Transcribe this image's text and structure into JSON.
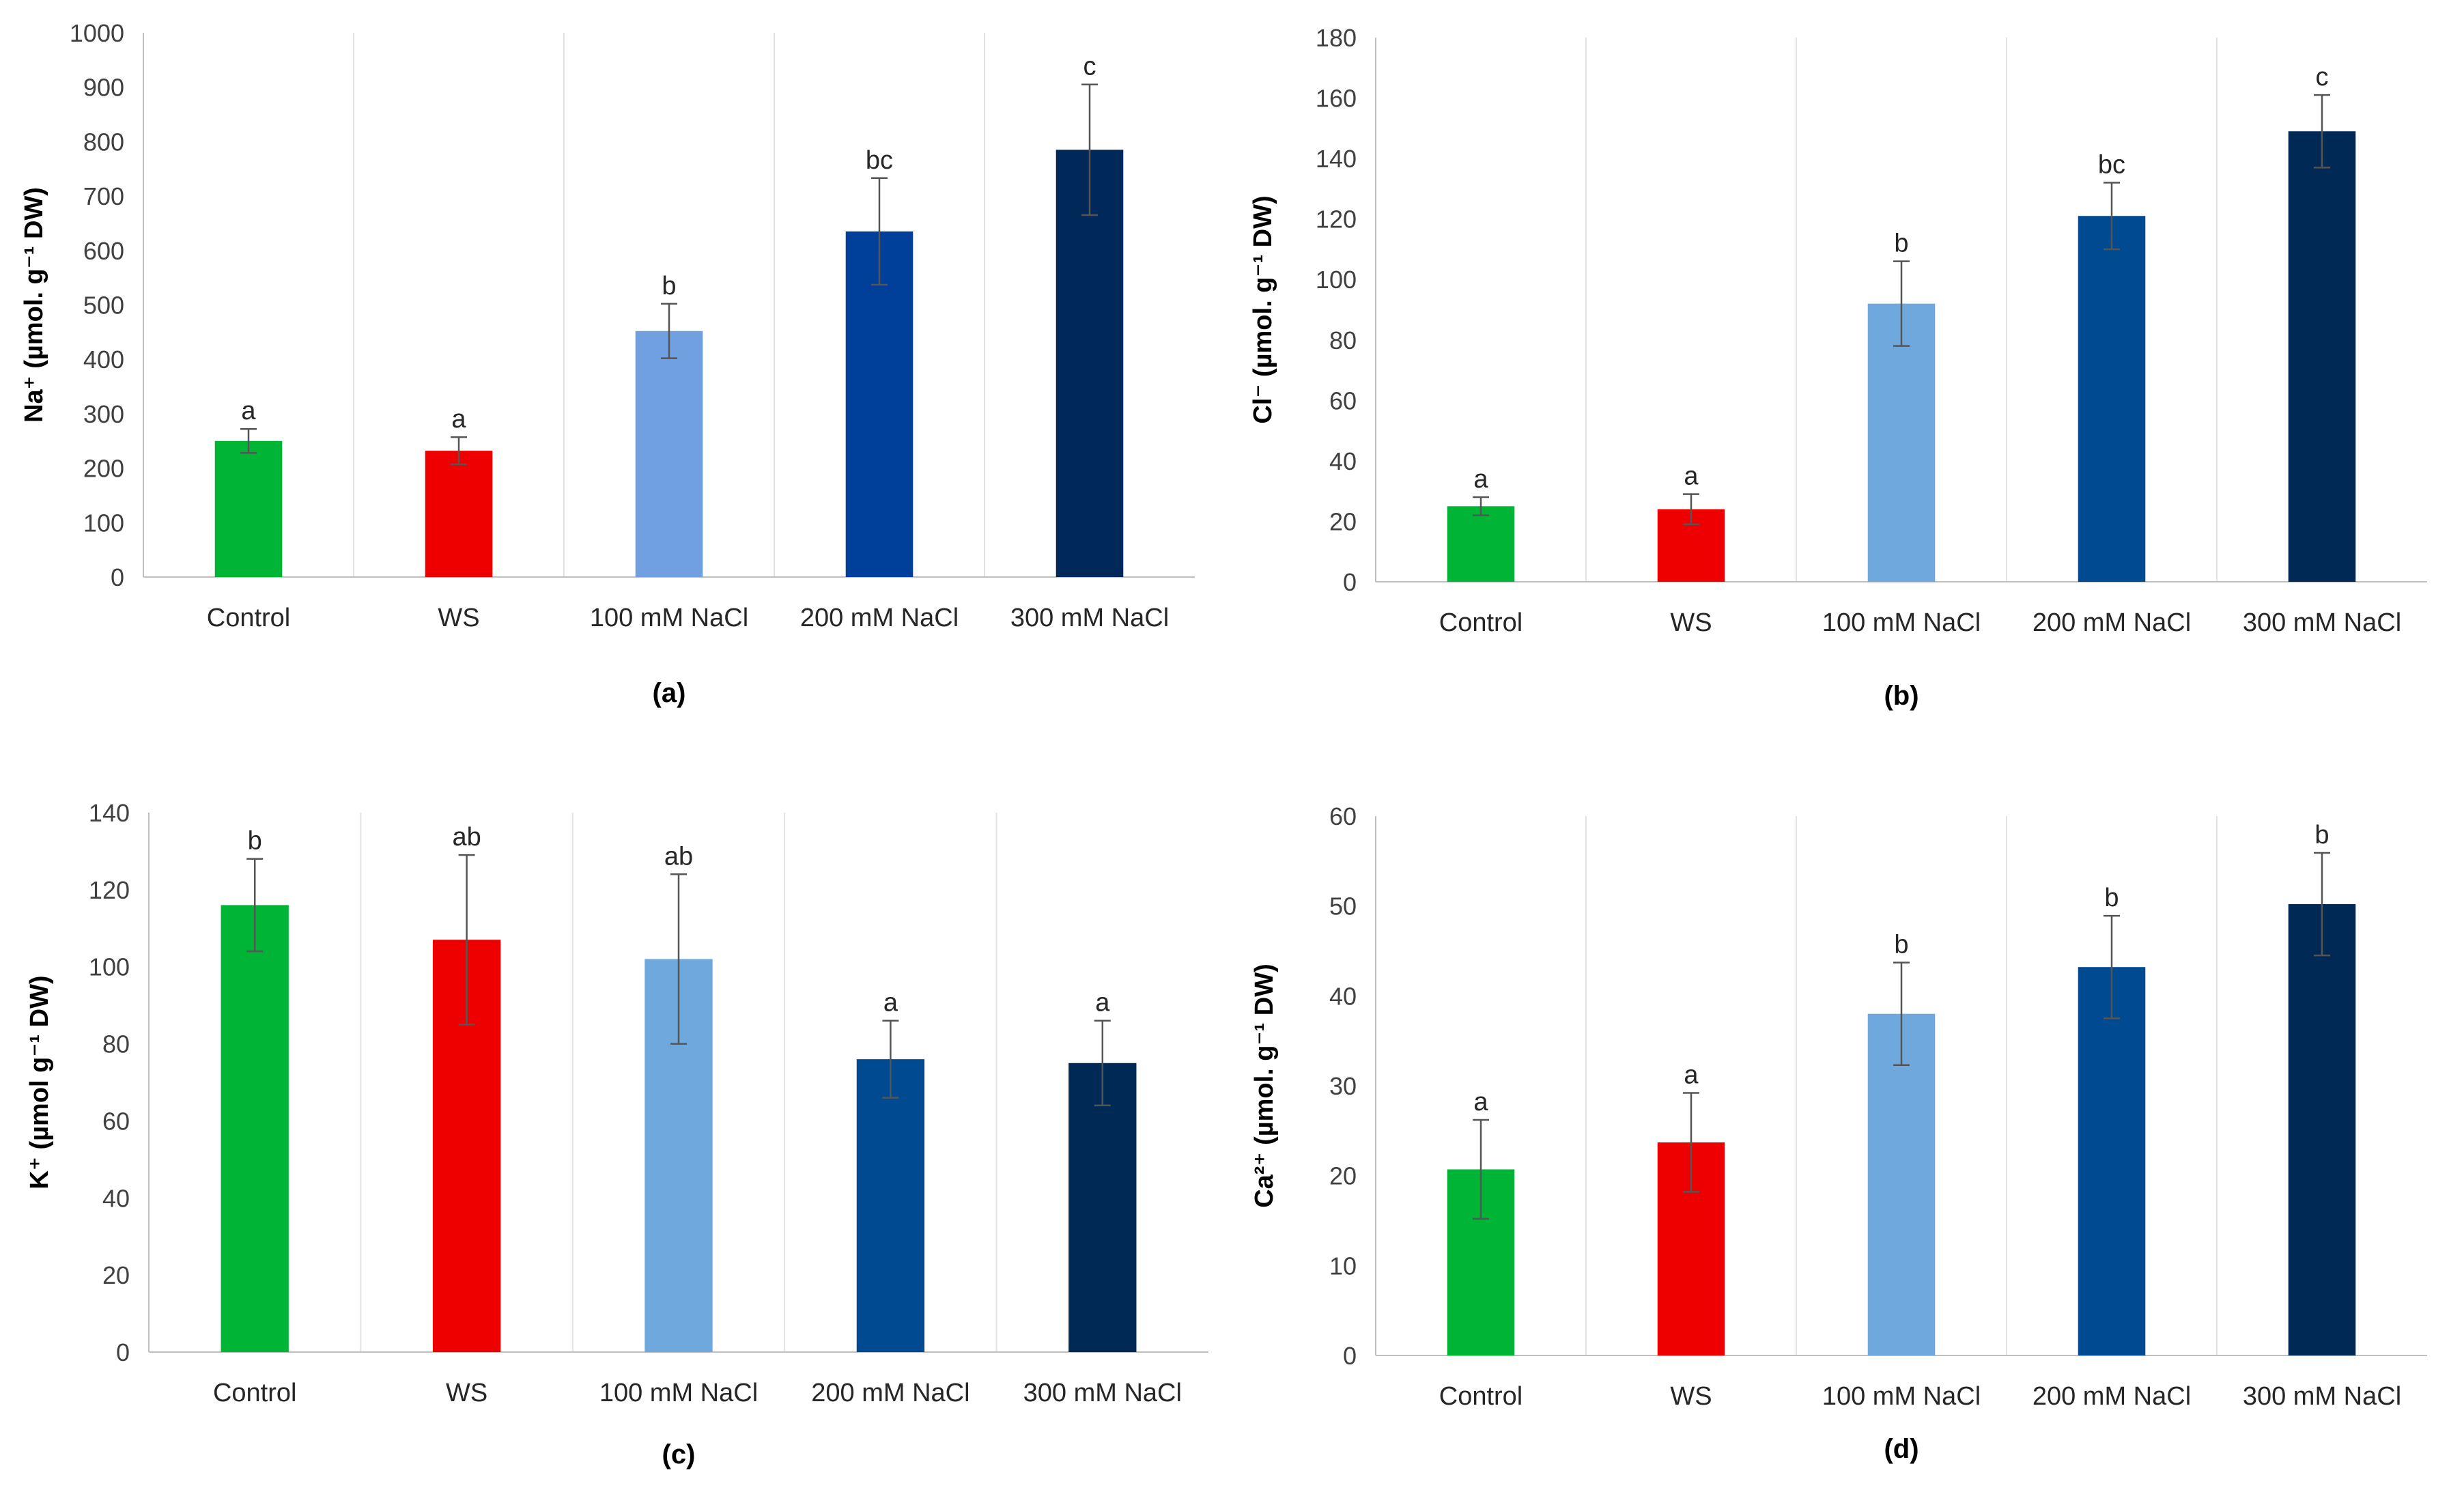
{
  "colors": {
    "control": "#00b536",
    "ws": "#ee0000",
    "nacl100": "#6fa8dc",
    "nacl200": "#004a92",
    "nacl300": "#002a55"
  },
  "chart_data": [
    {
      "type": "bar",
      "panel_label": "(a)",
      "ylabel": "Na⁺ (µmol. g⁻¹ DW)",
      "ylim": [
        0,
        1000
      ],
      "yticks": [
        0,
        100,
        200,
        300,
        400,
        500,
        600,
        700,
        800,
        900,
        1000
      ],
      "categories": [
        "Control",
        "WS",
        "100 mM NaCl",
        "200 mM NaCl",
        "300 mM NaCl"
      ],
      "values": [
        250,
        232,
        452,
        635,
        785
      ],
      "errors": [
        22,
        25,
        50,
        98,
        120
      ],
      "significance": [
        "a",
        "a",
        "b",
        "bc",
        "c"
      ],
      "colors": [
        "#00b536",
        "#ee0000",
        "#70a0e0",
        "#00409a",
        "#002858"
      ],
      "grid": "vertical separators"
    },
    {
      "type": "bar",
      "panel_label": "(b)",
      "ylabel": "Cl⁻ (µmol. g⁻¹ DW)",
      "ylim": [
        0,
        180
      ],
      "yticks": [
        0,
        20,
        40,
        60,
        80,
        100,
        120,
        140,
        160,
        180
      ],
      "categories": [
        "Control",
        "WS",
        "100 mM NaCl",
        "200 mM NaCl",
        "300 mM NaCl"
      ],
      "values": [
        25,
        24,
        92,
        121,
        149
      ],
      "errors": [
        3,
        5,
        14,
        11,
        12
      ],
      "significance": [
        "a",
        "a",
        "b",
        "bc",
        "c"
      ],
      "colors": [
        "#00b536",
        "#ee0000",
        "#6fa8dc",
        "#004a92",
        "#002a55"
      ],
      "grid": "vertical separators"
    },
    {
      "type": "bar",
      "panel_label": "(c)",
      "ylabel": "K⁺ (µmol g⁻¹ DW)",
      "ylim": [
        0,
        140
      ],
      "yticks": [
        0,
        20,
        40,
        60,
        80,
        100,
        120,
        140
      ],
      "categories": [
        "Control",
        "WS",
        "100 mM NaCl",
        "200 mM NaCl",
        "300 mM NaCl"
      ],
      "values": [
        116,
        107,
        102,
        76,
        75
      ],
      "errors": [
        12,
        22,
        22,
        10,
        11
      ],
      "significance": [
        "b",
        "ab",
        "ab",
        "a",
        "a"
      ],
      "colors": [
        "#00b536",
        "#ee0000",
        "#6fa8dc",
        "#004a92",
        "#002a55"
      ],
      "grid": "vertical separators"
    },
    {
      "type": "bar",
      "panel_label": "(d)",
      "ylabel": "Ca²⁺ (µmol. g⁻¹ DW)",
      "ylim": [
        0,
        60
      ],
      "yticks": [
        0,
        10,
        20,
        30,
        40,
        50,
        60
      ],
      "categories": [
        "Control",
        "WS",
        "100 mM NaCl",
        "200 mM NaCl",
        "300 mM NaCl"
      ],
      "values": [
        20.7,
        23.7,
        38,
        43.2,
        50.2
      ],
      "errors": [
        5.5,
        5.5,
        5.7,
        5.7,
        5.7
      ],
      "significance": [
        "a",
        "a",
        "b",
        "b",
        "b"
      ],
      "colors": [
        "#00b536",
        "#ee0000",
        "#6fa8dc",
        "#004a92",
        "#002a55"
      ],
      "grid": "vertical separators"
    }
  ]
}
